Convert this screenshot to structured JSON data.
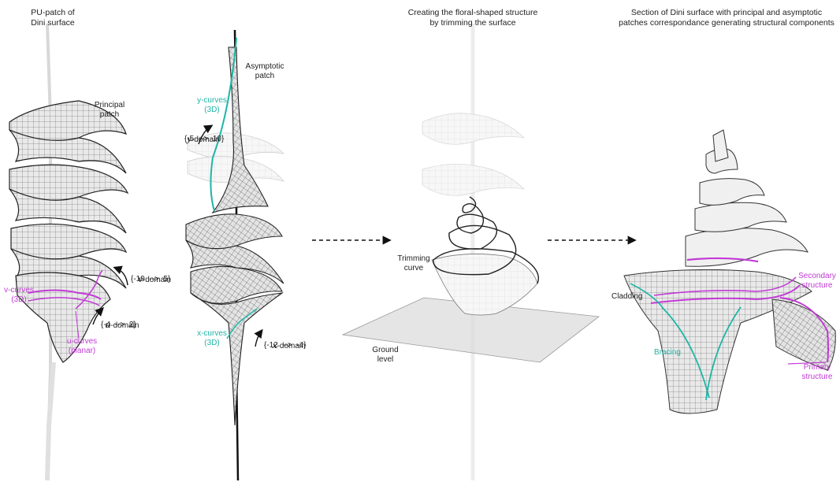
{
  "panel1": {
    "title": "PU-patch of\nDini surface",
    "principal_patch": "Principal\npatch",
    "v_domain_var": "v",
    "v_domain_word": "-domain",
    "v_domain_range": "{-19  -->  5}",
    "u_domain_var": "u",
    "u_domain_word": "-domain",
    "u_domain_range": "{-4  -->  2}",
    "v_curves": "v-curves\n(3D)",
    "u_curves": "u-curves\n(planar)"
  },
  "panel2": {
    "asymptotic_patch": "Asymptotic\npatch",
    "y_curves": "y-curves\n(3D)",
    "y_domain_var": "y",
    "y_domain_word": "-domain",
    "y_domain_range": "{-5  -->  10}",
    "x_curves": "x-curves\n(3D)",
    "x_domain_var": "x",
    "x_domain_word": "-domain",
    "x_domain_range": "{-12  -->  -4}"
  },
  "panel3": {
    "title": "Creating the floral-shaped structure\nby trimming the surface",
    "trimming_curve": "Trimming\ncurve",
    "ground_level": "Ground\nlevel"
  },
  "panel4": {
    "title": "Section of Dini surface with principal and asymptotic\npatches correspondance generating structural components",
    "cladding": "Cladding",
    "secondary_structure": "Secondary\nstructure",
    "bracing": "Bracing",
    "primary_structure": "Primary\nstructure"
  },
  "colors": {
    "principal_curves": "#c23ad6",
    "asymptotic_curves": "#1fb5a6",
    "surface": "#e6e6e6",
    "grid": "#3a3a3a"
  }
}
